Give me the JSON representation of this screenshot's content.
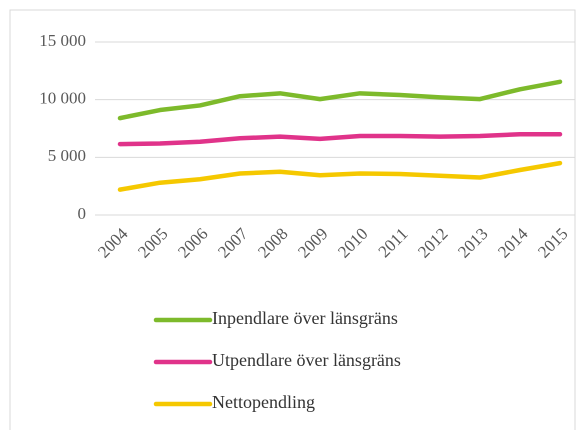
{
  "chart_data": {
    "type": "line",
    "categories": [
      "2004",
      "2005",
      "2006",
      "2007",
      "2008",
      "2009",
      "2010",
      "2011",
      "2012",
      "2013",
      "2014",
      "2015"
    ],
    "series": [
      {
        "name": "Inpendlare över länsgräns",
        "color": "#7dba2b",
        "values": [
          8400,
          9100,
          9500,
          10300,
          10550,
          10050,
          10550,
          10400,
          10200,
          10050,
          10900,
          11550
        ]
      },
      {
        "name": "Utpendlare över länsgräns",
        "color": "#e0338a",
        "values": [
          6150,
          6200,
          6350,
          6650,
          6800,
          6600,
          6850,
          6850,
          6800,
          6850,
          7000,
          7000
        ]
      },
      {
        "name": "Nettopendling",
        "color": "#f5c800",
        "values": [
          2200,
          2800,
          3100,
          3600,
          3750,
          3450,
          3600,
          3550,
          3400,
          3250,
          3900,
          4500
        ]
      }
    ],
    "ylim": [
      0,
      15000
    ],
    "yticks": [
      {
        "value": 0,
        "label": "0"
      },
      {
        "value": 5000,
        "label": "5 000"
      },
      {
        "value": 10000,
        "label": "10 000"
      },
      {
        "value": 15000,
        "label": "15 000"
      }
    ],
    "grid": true,
    "legend": "bottom"
  }
}
